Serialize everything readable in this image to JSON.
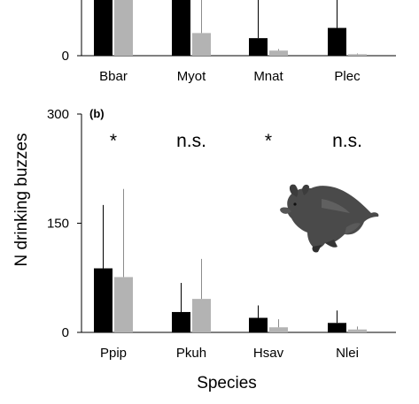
{
  "figure": {
    "ylabel": "N drinking buzzes",
    "xlabel": "Species",
    "colors": {
      "series_a": "#000000",
      "series_b": "#b3b3b3",
      "axis": "#000000"
    },
    "illustration": "bat-photo"
  },
  "chart_data": [
    {
      "type": "bar",
      "panel_label": "",
      "categories": [
        "Bbar",
        "Myot",
        "Mnat",
        "Plec"
      ],
      "ylim": [
        0,
        300
      ],
      "yticks": [
        0
      ],
      "ytick_labels": [
        "0"
      ],
      "grid": false,
      "series": [
        {
          "values": [
            150,
            135,
            24,
            38
          ],
          "errors": [
            40,
            20,
            76,
            40
          ]
        },
        {
          "values": [
            115,
            31,
            7,
            2
          ],
          "errors": [
            40,
            51,
            2,
            1
          ]
        }
      ],
      "significance": []
    },
    {
      "type": "bar",
      "panel_label": "(b)",
      "categories": [
        "Ppip",
        "Pkuh",
        "Hsav",
        "Nlei"
      ],
      "ylim": [
        0,
        300
      ],
      "yticks": [
        0,
        150,
        300
      ],
      "ytick_labels": [
        "0",
        "150",
        "300"
      ],
      "grid": false,
      "series": [
        {
          "values": [
            88,
            28,
            20,
            13
          ],
          "errors": [
            87,
            40,
            17,
            17
          ]
        },
        {
          "values": [
            76,
            46,
            7,
            4
          ],
          "errors": [
            121,
            55,
            11,
            4
          ]
        }
      ],
      "significance": [
        "*",
        "n.s.",
        "*",
        "n.s."
      ]
    }
  ]
}
